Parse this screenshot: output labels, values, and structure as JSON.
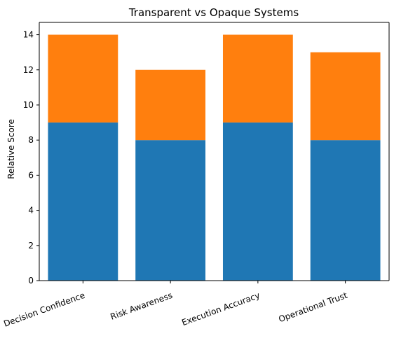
{
  "chart_data": {
    "type": "bar",
    "stacked": true,
    "title": "Transparent vs Opaque Systems",
    "xlabel": "",
    "ylabel": "Relative Score",
    "categories": [
      "Decision Confidence",
      "Risk Awareness",
      "Execution Accuracy",
      "Operational Trust"
    ],
    "series": [
      {
        "values": [
          9,
          8,
          9,
          8
        ],
        "color": "#1f77b4"
      },
      {
        "values": [
          5,
          4,
          5,
          5
        ],
        "color": "#ff7f0e"
      }
    ],
    "ylim": [
      0,
      14.7
    ],
    "yticks": [
      0,
      2,
      4,
      6,
      8,
      10,
      12,
      14
    ],
    "grid": false,
    "legend": "none",
    "x_tick_rotation": "-20deg"
  }
}
